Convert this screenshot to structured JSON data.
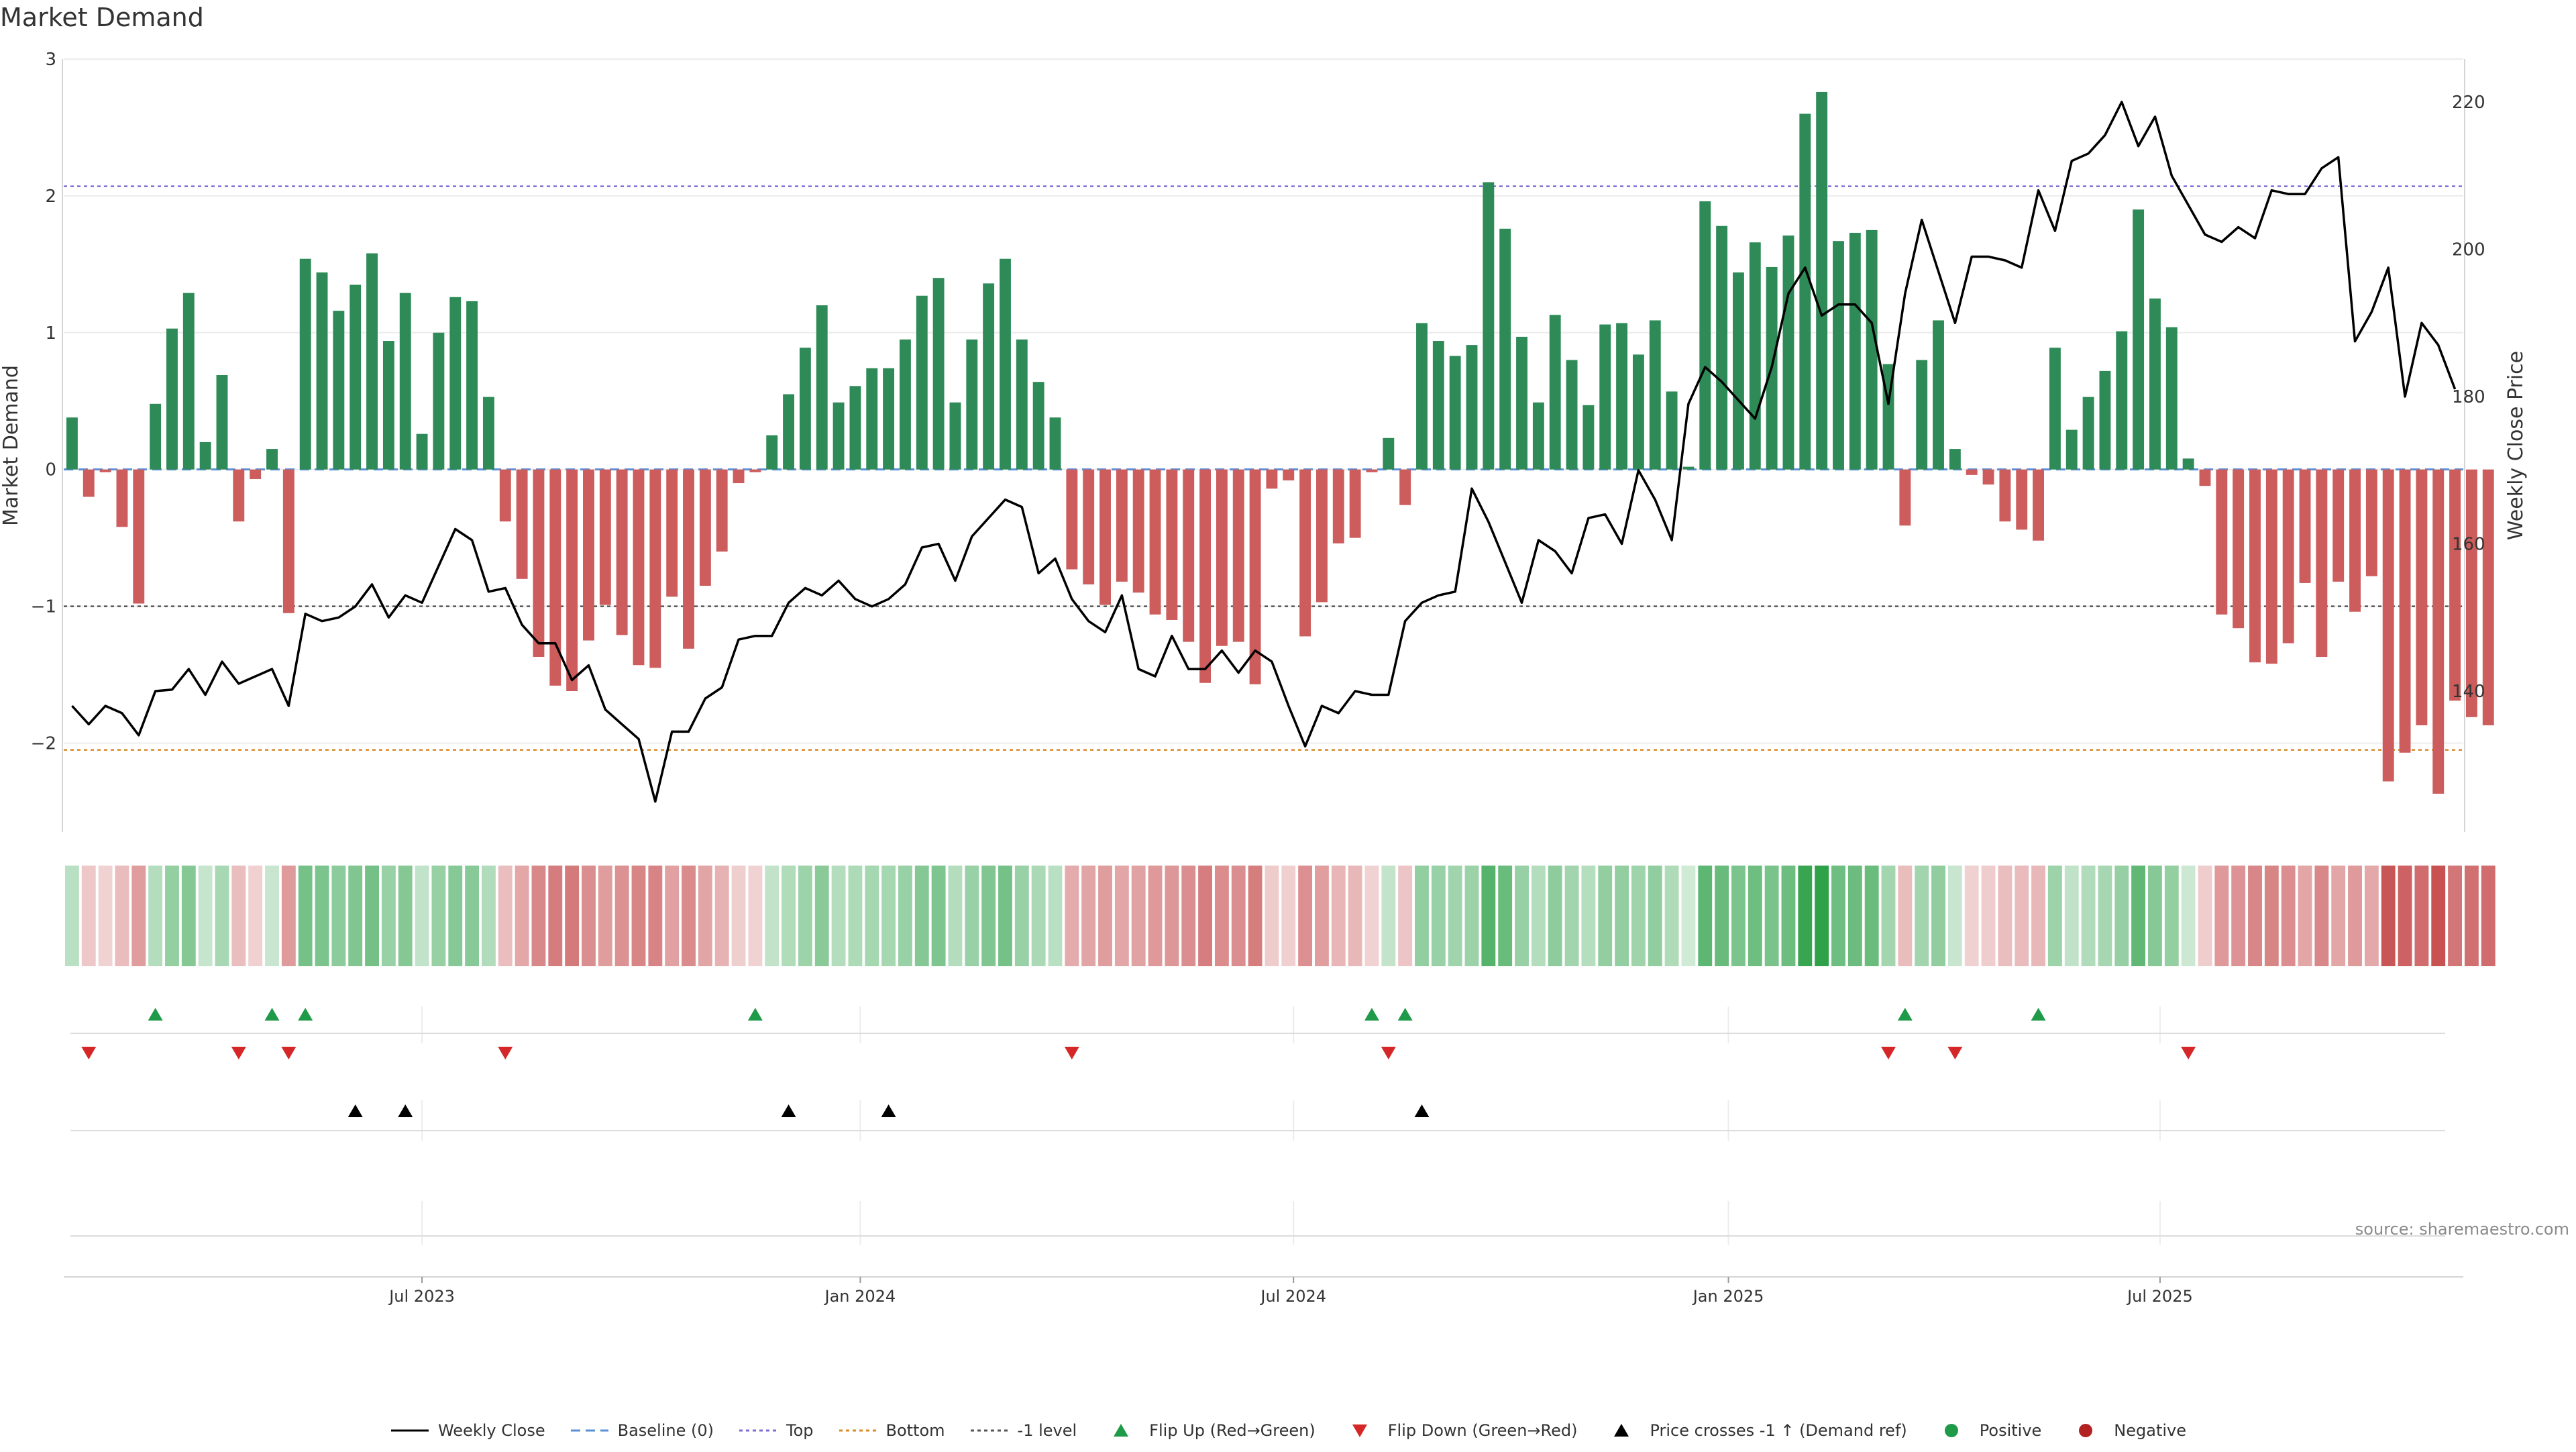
{
  "chart_data": {
    "type": "bar",
    "title": "Market Demand",
    "ylabel": "Market Demand",
    "y2label": "Weekly Close Price",
    "ylim": [
      -2.65,
      3.0
    ],
    "y2lim": [
      125,
      225
    ],
    "yticks": [
      3,
      2,
      1,
      0,
      -1,
      -2
    ],
    "yticklabels": [
      "3",
      "2",
      "1",
      "0",
      "−1",
      "−2"
    ],
    "y2ticks": [
      220,
      200,
      180,
      160,
      140
    ],
    "x_tick_labels": [
      "Jul 2023",
      "Jan 2024",
      "Jul 2024",
      "Jan 2025",
      "Jul 2025"
    ],
    "x_tick_weeks": [
      21.5,
      47.8,
      73.8,
      99.9,
      125.8
    ],
    "weeks": 144,
    "reference_lines": [
      {
        "name": "Top",
        "value": 2.07,
        "color": "#7b6fd6"
      },
      {
        "name": "-1 level",
        "value": -1.0,
        "color": "#555555"
      },
      {
        "name": "Bottom",
        "value": -2.05,
        "color": "#d98b27"
      },
      {
        "name": "Baseline (0)",
        "value": 0.0,
        "color": "#5b8fd6"
      }
    ],
    "demand": [
      0.38,
      -0.2,
      -0.02,
      -0.42,
      -0.98,
      0.48,
      1.03,
      1.29,
      0.2,
      0.69,
      -0.38,
      -0.07,
      0.15,
      -1.05,
      1.54,
      1.44,
      1.16,
      1.35,
      1.58,
      0.94,
      1.29,
      0.26,
      1.0,
      1.26,
      1.23,
      0.53,
      -0.38,
      -0.8,
      -1.37,
      -1.58,
      -1.62,
      -1.25,
      -0.99,
      -1.21,
      -1.43,
      -1.45,
      -0.93,
      -1.31,
      -0.85,
      -0.6,
      -0.1,
      -0.02,
      0.25,
      0.55,
      0.89,
      1.2,
      0.49,
      0.61,
      0.74,
      0.74,
      0.95,
      1.27,
      1.4,
      0.49,
      0.95,
      1.36,
      1.54,
      0.95,
      0.64,
      0.38,
      -0.73,
      -0.84,
      -0.99,
      -0.82,
      -0.9,
      -1.06,
      -1.1,
      -1.26,
      -1.56,
      -1.29,
      -1.26,
      -1.57,
      -0.14,
      -0.08,
      -1.22,
      -0.97,
      -0.54,
      -0.5,
      -0.02,
      0.23,
      -0.26,
      1.07,
      0.94,
      0.83,
      0.91,
      2.1,
      1.76,
      0.97,
      0.49,
      1.13,
      0.8,
      0.47,
      1.06,
      1.07,
      0.84,
      1.09,
      0.57,
      0.02,
      1.96,
      1.78,
      1.44,
      1.66,
      1.48,
      1.71,
      2.6,
      2.76,
      1.67,
      1.73,
      1.75,
      0.77,
      -0.41,
      0.8,
      1.09,
      0.15,
      -0.04,
      -0.11,
      -0.38,
      -0.44,
      -0.52,
      0.89,
      0.29,
      0.53,
      0.72,
      1.01,
      1.9,
      1.25,
      1.04,
      0.08,
      -0.12,
      -1.06,
      -1.16,
      -1.41,
      -1.42,
      -1.27,
      -0.83,
      -1.37,
      -0.82,
      -1.04,
      -0.78,
      -2.28,
      -2.07,
      -1.87,
      -2.37,
      -1.69,
      -1.81,
      -1.87
    ],
    "weekly_close": [
      138,
      135.5,
      138,
      137,
      134,
      140,
      140.2,
      143,
      139.5,
      144,
      141,
      142,
      143,
      138,
      150.5,
      149.5,
      150,
      151.5,
      154.5,
      150,
      153,
      152,
      157,
      162,
      160.5,
      153.5,
      154,
      149,
      146.5,
      146.5,
      141.5,
      143.5,
      137.5,
      135.5,
      133.5,
      125,
      134.5,
      134.5,
      139,
      140.5,
      147,
      147.5,
      147.5,
      152,
      154,
      153,
      155,
      152.5,
      151.5,
      152.5,
      154.5,
      159.5,
      160,
      155,
      161,
      163.5,
      166,
      165,
      156,
      158,
      152.5,
      149.5,
      148,
      153,
      143,
      142,
      147.5,
      143,
      143,
      145.5,
      142.5,
      145.5,
      144,
      138,
      132.5,
      138,
      137,
      140,
      139.5,
      139.5,
      149.5,
      152,
      153,
      153.5,
      167.5,
      163,
      157.5,
      152,
      160.5,
      159,
      156,
      163.5,
      164,
      160,
      170,
      166,
      160.5,
      179,
      184,
      182,
      179.5,
      177,
      184,
      194,
      197.5,
      191,
      192.5,
      192.5,
      190,
      179,
      194,
      204,
      197,
      190,
      199,
      199,
      198.5,
      197.5,
      208,
      202.5,
      212,
      213,
      215.5,
      220,
      214,
      218,
      210,
      206,
      202,
      201,
      203,
      201.5,
      208,
      207.5,
      207.5,
      211,
      212.5,
      187.5,
      191.5,
      197.5,
      180,
      190,
      187,
      181
    ],
    "flip_up_weeks": [
      5,
      12,
      14,
      41,
      78,
      80,
      110,
      118
    ],
    "flip_down_weeks": [
      1,
      10,
      13,
      26,
      60,
      79,
      109,
      113,
      127
    ],
    "price_cross_weeks": [
      17,
      20,
      43,
      49,
      81
    ],
    "legend": [
      {
        "label": "Weekly Close",
        "kind": "line",
        "color": "#000000"
      },
      {
        "label": "Baseline (0)",
        "kind": "dashed",
        "color": "#5b8fd6"
      },
      {
        "label": "Top",
        "kind": "dotted",
        "color": "#7b6fd6"
      },
      {
        "label": "Bottom",
        "kind": "dotted",
        "color": "#d98b27"
      },
      {
        "label": "-1 level",
        "kind": "dotted",
        "color": "#555555"
      },
      {
        "label": "Flip Up (Red→Green)",
        "kind": "tri-up",
        "color": "#1f9a48"
      },
      {
        "label": "Flip Down (Green→Red)",
        "kind": "tri-down",
        "color": "#d62728"
      },
      {
        "label": "Price crosses -1 ↑ (Demand ref)",
        "kind": "tri-up",
        "color": "#000000"
      },
      {
        "label": "Positive",
        "kind": "dot",
        "color": "#1f9a48"
      },
      {
        "label": "Negative",
        "kind": "dot",
        "color": "#b22222"
      }
    ],
    "source": "source: sharemaestro.com"
  },
  "colors": {
    "positive_bar": "#2e8b57",
    "negative_bar": "#cd5c5c",
    "price_line": "#000000",
    "heat_positive": "#2ca047",
    "heat_negative": "#c0393b"
  }
}
